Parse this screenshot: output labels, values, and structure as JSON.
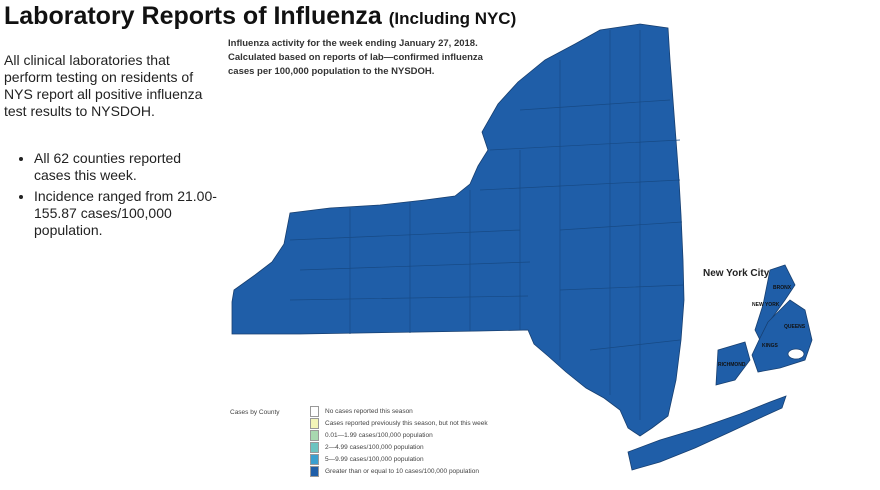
{
  "title": {
    "main": "Laboratory Reports of Influenza",
    "sub": "(Including NYC)"
  },
  "intro": "All clinical laboratories that perform testing on residents of NYS report all positive influenza test results to NYSDOH.",
  "bullets": [
    "All 62 counties reported cases this week.",
    "Incidence ranged from 21.00-155.87 cases/100,000 population."
  ],
  "map": {
    "note_lines": [
      "Influenza activity for the week ending January 27, 2018.",
      "Calculated based on reports of lab—confirmed influenza",
      "cases per 100,000 population to the NYSDOH."
    ],
    "fill_color": "#1f5ea8",
    "nyc_inset_title": "New York City",
    "boroughs": [
      "BRONX",
      "NEW YORK",
      "QUEENS",
      "KINGS",
      "RICHMOND"
    ],
    "all_counties_category": "Greater than or equal to 10 cases/100,000 population"
  },
  "legend": {
    "title": "Cases by County",
    "items": [
      {
        "label": "No cases reported this season",
        "color": "#ffffff"
      },
      {
        "label": "Cases reported previously this season, but not this week",
        "color": "#f3f5b8"
      },
      {
        "label": "0.01—1.99 cases/100,000 population",
        "color": "#a8d8b0"
      },
      {
        "label": "2—4.99 cases/100,000 population",
        "color": "#6cc4c0"
      },
      {
        "label": "5—9.99 cases/100,000 population",
        "color": "#3a9fcf"
      },
      {
        "label": "Greater than or equal to 10 cases/100,000 population",
        "color": "#1f5ea8"
      }
    ]
  }
}
